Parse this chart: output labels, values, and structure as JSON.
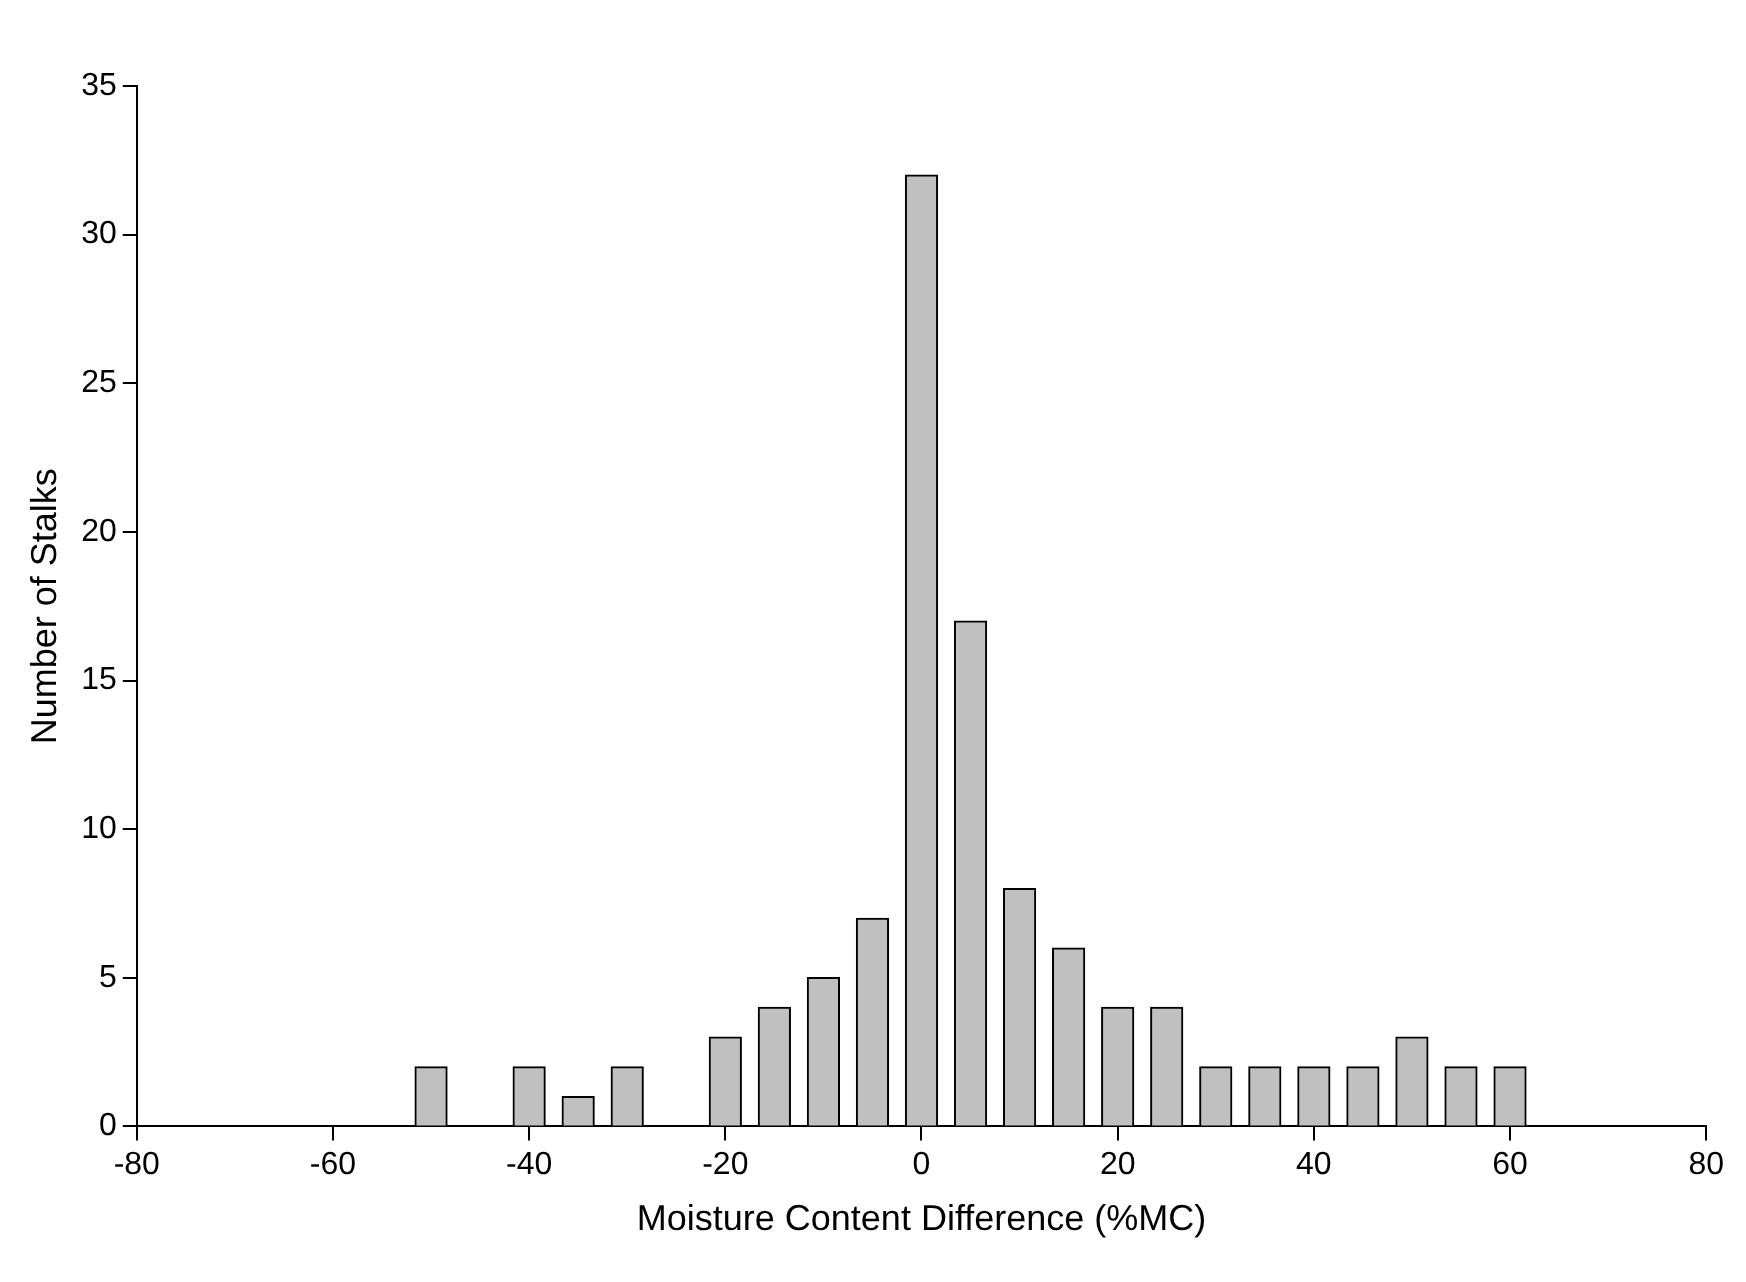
{
  "chart_data": {
    "type": "bar",
    "xlabel": "Moisture Content Difference (%MC)",
    "ylabel": "Number of Stalks",
    "x": [
      -50,
      -45,
      -40,
      -35,
      -30,
      -25,
      -20,
      -15,
      -10,
      -5,
      0,
      5,
      10,
      15,
      20,
      25,
      30,
      35,
      40,
      45,
      50,
      55,
      60
    ],
    "values": [
      2,
      0,
      2,
      1,
      2,
      0,
      3,
      4,
      5,
      7,
      32,
      17,
      8,
      6,
      4,
      4,
      2,
      2,
      2,
      2,
      3,
      2,
      2
    ],
    "color": "#c0c0c0",
    "xlim": [
      -80,
      80
    ],
    "xticks": [
      -80,
      -60,
      -40,
      -20,
      0,
      20,
      40,
      60,
      80
    ],
    "ylim": [
      0,
      35
    ],
    "yticks": [
      0,
      5,
      10,
      15,
      20,
      25,
      30,
      35
    ]
  }
}
